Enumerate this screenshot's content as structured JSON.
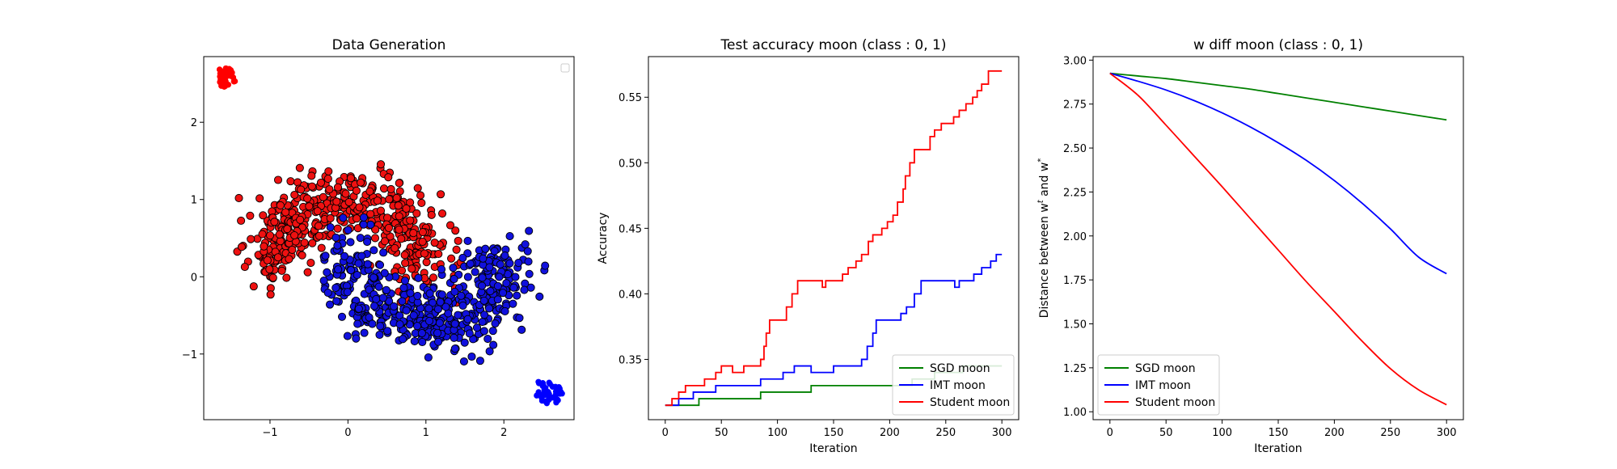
{
  "colors": {
    "red": "#ff0000",
    "blue": "#0000ff",
    "green": "#008000",
    "dot_red": "#ee1111",
    "dot_blue": "#1111dd"
  },
  "chart_data": [
    {
      "type": "scatter",
      "title": "Data Generation",
      "xlabel": "",
      "ylabel": "",
      "xlim": [
        -1.85,
        2.9
      ],
      "ylim": [
        -1.85,
        2.85
      ],
      "xticks": [
        -1,
        0,
        1,
        2
      ],
      "yticks": [
        -1,
        0,
        1,
        2
      ],
      "legend": {
        "position": "top-right",
        "entries": []
      },
      "grid": false,
      "series": [
        {
          "color": "red",
          "moon": {
            "cx": 0,
            "cy": 0.1,
            "r": 1.0,
            "angle_from": 0,
            "angle_to": 180,
            "noise": 0.22,
            "count": 500
          },
          "extra_cluster": {
            "x": [
              -1.65,
              -1.45
            ],
            "y": [
              2.45,
              2.7
            ]
          }
        },
        {
          "color": "blue",
          "moon": {
            "cx": 1.0,
            "cy": 0.3,
            "r": 1.0,
            "angle_from": 180,
            "angle_to": 360,
            "noise": 0.22,
            "count": 500
          },
          "extra_cluster": {
            "x": [
              2.4,
              2.75
            ],
            "y": [
              -1.65,
              -1.35
            ]
          }
        }
      ]
    },
    {
      "type": "line",
      "title": "Test accuracy moon (class : 0, 1)",
      "xlabel": "Iteration",
      "ylabel": "Accuracy",
      "xlim": [
        -15,
        315
      ],
      "ylim": [
        0.304,
        0.581
      ],
      "xticks": [
        0,
        50,
        100,
        150,
        200,
        250,
        300
      ],
      "yticks": [
        0.35,
        0.4,
        0.45,
        0.5,
        0.55
      ],
      "legend": "lower-right",
      "grid": false,
      "series": [
        {
          "name": "SGD moon",
          "color": "green",
          "steps": [
            [
              0,
              0.315
            ],
            [
              30,
              0.32
            ],
            [
              85,
              0.325
            ],
            [
              130,
              0.33
            ],
            [
              220,
              0.335
            ],
            [
              240,
              0.34
            ],
            [
              265,
              0.345
            ],
            [
              300,
              0.345
            ]
          ]
        },
        {
          "name": "IMT moon",
          "color": "blue",
          "steps": [
            [
              0,
              0.315
            ],
            [
              12,
              0.32
            ],
            [
              25,
              0.325
            ],
            [
              45,
              0.33
            ],
            [
              85,
              0.335
            ],
            [
              105,
              0.34
            ],
            [
              115,
              0.345
            ],
            [
              130,
              0.34
            ],
            [
              150,
              0.345
            ],
            [
              175,
              0.35
            ],
            [
              180,
              0.36
            ],
            [
              185,
              0.37
            ],
            [
              188,
              0.38
            ],
            [
              210,
              0.385
            ],
            [
              215,
              0.39
            ],
            [
              222,
              0.4
            ],
            [
              228,
              0.41
            ],
            [
              258,
              0.405
            ],
            [
              262,
              0.41
            ],
            [
              275,
              0.415
            ],
            [
              282,
              0.42
            ],
            [
              290,
              0.425
            ],
            [
              295,
              0.43
            ],
            [
              300,
              0.43
            ]
          ]
        },
        {
          "name": "Student moon",
          "color": "red",
          "steps": [
            [
              0,
              0.315
            ],
            [
              6,
              0.32
            ],
            [
              12,
              0.325
            ],
            [
              18,
              0.33
            ],
            [
              35,
              0.335
            ],
            [
              45,
              0.34
            ],
            [
              50,
              0.345
            ],
            [
              60,
              0.34
            ],
            [
              70,
              0.345
            ],
            [
              85,
              0.35
            ],
            [
              88,
              0.36
            ],
            [
              90,
              0.37
            ],
            [
              93,
              0.38
            ],
            [
              100,
              0.38
            ],
            [
              108,
              0.39
            ],
            [
              113,
              0.4
            ],
            [
              118,
              0.41
            ],
            [
              140,
              0.405
            ],
            [
              143,
              0.41
            ],
            [
              158,
              0.415
            ],
            [
              163,
              0.42
            ],
            [
              170,
              0.425
            ],
            [
              175,
              0.43
            ],
            [
              181,
              0.44
            ],
            [
              185,
              0.445
            ],
            [
              193,
              0.45
            ],
            [
              198,
              0.455
            ],
            [
              203,
              0.46
            ],
            [
              207,
              0.47
            ],
            [
              212,
              0.48
            ],
            [
              214,
              0.49
            ],
            [
              218,
              0.5
            ],
            [
              222,
              0.51
            ],
            [
              236,
              0.52
            ],
            [
              240,
              0.525
            ],
            [
              246,
              0.53
            ],
            [
              257,
              0.535
            ],
            [
              262,
              0.54
            ],
            [
              268,
              0.545
            ],
            [
              274,
              0.55
            ],
            [
              278,
              0.555
            ],
            [
              282,
              0.56
            ],
            [
              288,
              0.57
            ],
            [
              300,
              0.57
            ]
          ]
        }
      ]
    },
    {
      "type": "line",
      "title": "w diff moon (class : 0, 1)",
      "xlabel": "Iteration",
      "ylabel": "Distance between w",
      "ylabel_sup1": "t",
      "ylabel_mid": " and w",
      "ylabel_sup2": "*",
      "xlim": [
        -15,
        315
      ],
      "ylim": [
        0.955,
        3.02
      ],
      "xticks": [
        0,
        50,
        100,
        150,
        200,
        250,
        300
      ],
      "yticks": [
        1.0,
        1.25,
        1.5,
        1.75,
        2.0,
        2.25,
        2.5,
        2.75,
        3.0
      ],
      "legend": "lower-left",
      "grid": false,
      "series": [
        {
          "name": "SGD moon",
          "color": "green",
          "x": [
            0,
            25,
            50,
            75,
            100,
            125,
            150,
            175,
            200,
            225,
            250,
            275,
            300
          ],
          "y": [
            2.925,
            2.91,
            2.895,
            2.875,
            2.855,
            2.835,
            2.81,
            2.785,
            2.76,
            2.735,
            2.71,
            2.685,
            2.66
          ]
        },
        {
          "name": "IMT moon",
          "color": "blue",
          "x": [
            0,
            25,
            50,
            75,
            100,
            125,
            150,
            175,
            200,
            225,
            250,
            275,
            300
          ],
          "y": [
            2.925,
            2.88,
            2.83,
            2.77,
            2.7,
            2.62,
            2.53,
            2.43,
            2.315,
            2.185,
            2.04,
            1.88,
            1.785
          ]
        },
        {
          "name": "Student moon",
          "color": "red",
          "x": [
            0,
            25,
            50,
            75,
            100,
            125,
            150,
            175,
            200,
            225,
            250,
            275,
            300
          ],
          "y": [
            2.925,
            2.8,
            2.63,
            2.455,
            2.28,
            2.1,
            1.92,
            1.74,
            1.57,
            1.4,
            1.245,
            1.125,
            1.04
          ]
        }
      ]
    }
  ]
}
